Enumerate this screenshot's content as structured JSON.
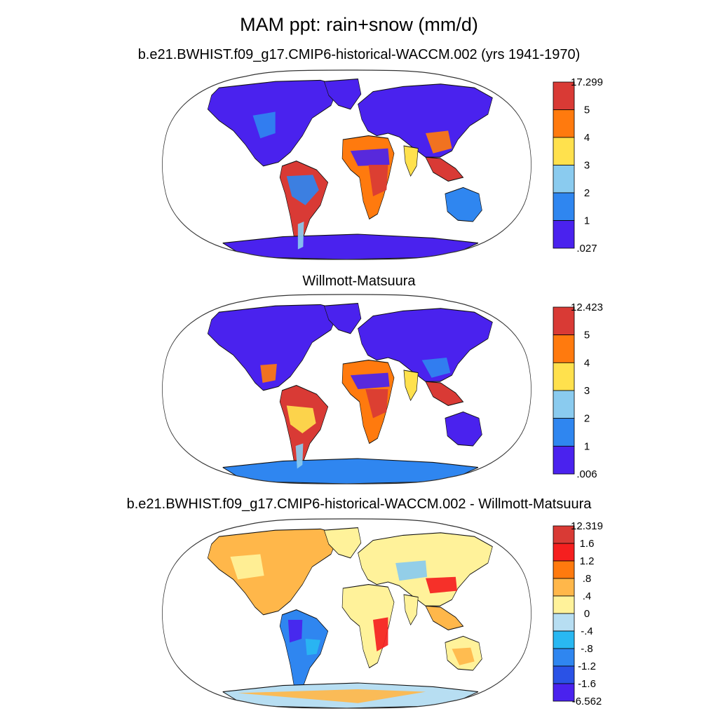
{
  "title": "MAM ppt: rain+snow (mm/d)",
  "panels": [
    {
      "title": "b.e21.BWHIST.f09_g17.CMIP6-historical-WACCM.002 (yrs 1941-1970)",
      "colorbar": {
        "labels": [
          "17.299",
          "5",
          "4",
          "3",
          "2",
          "1",
          ".027"
        ],
        "colors": [
          "#d93a35",
          "#ff7a0e",
          "#ffe14d",
          "#8acbef",
          "#2f86f0",
          "#4a22ee"
        ]
      }
    },
    {
      "title": "Willmott-Matsuura",
      "colorbar": {
        "labels": [
          "12.423",
          "5",
          "4",
          "3",
          "2",
          "1",
          ".006"
        ],
        "colors": [
          "#d93a35",
          "#ff7a0e",
          "#ffe14d",
          "#8acbef",
          "#2f86f0",
          "#4a22ee"
        ]
      }
    },
    {
      "title": "b.e21.BWHIST.f09_g17.CMIP6-historical-WACCM.002 - Willmott-Matsuura",
      "colorbar": {
        "labels": [
          "12.319",
          "1.6",
          "1.2",
          ".8",
          ".4",
          "0",
          "-.4",
          "-.8",
          "-1.2",
          "-1.6",
          "-6.562"
        ],
        "colors": [
          "#d93a35",
          "#f51f1f",
          "#ff7a0e",
          "#ffb74a",
          "#fff29a",
          "#b7def2",
          "#29b8f2",
          "#2f86f0",
          "#2a52e6",
          "#4a22ee"
        ]
      }
    }
  ]
}
